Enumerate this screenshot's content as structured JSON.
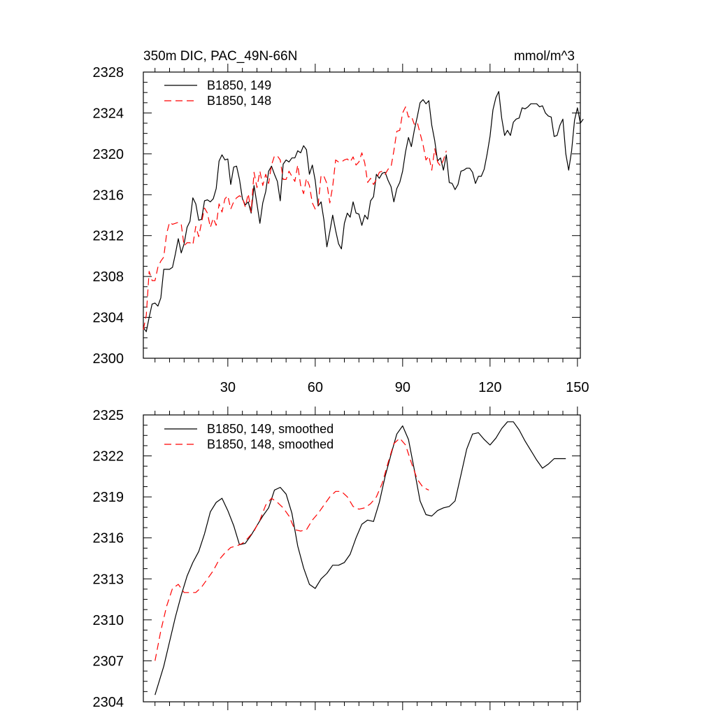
{
  "chart_data": [
    {
      "type": "line",
      "title": "350m DIC, PAC_49N-66N",
      "units": "mmol/m^3",
      "xlabel": "",
      "ylabel": "",
      "xlim": [
        1,
        151
      ],
      "ylim": [
        2300,
        2328
      ],
      "x_ticks": [
        30,
        60,
        90,
        120,
        150
      ],
      "y_ticks": [
        2300,
        2304,
        2308,
        2312,
        2316,
        2320,
        2324,
        2328
      ],
      "legend_position": "top-left",
      "grid": false,
      "series": [
        {
          "name": "B1850, 149",
          "color": "#000000",
          "dash": "solid",
          "x_start": 1,
          "values": [
            2303.0,
            2302.6,
            2304.0,
            2305.3,
            2305.4,
            2305.1,
            2305.9,
            2308.7,
            2308.7,
            2308.7,
            2308.9,
            2310.2,
            2311.7,
            2310.3,
            2311.2,
            2312.8,
            2313.4,
            2315.7,
            2315.1,
            2313.5,
            2313.6,
            2315.4,
            2315.5,
            2315.3,
            2315.6,
            2316.6,
            2319.3,
            2319.9,
            2319.4,
            2319.5,
            2317.0,
            2318.7,
            2318.8,
            2317.5,
            2315.6,
            2315.0,
            2315.3,
            2314.2,
            2316.9,
            2315.1,
            2313.2,
            2315.2,
            2316.3,
            2318.3,
            2318.8,
            2318.0,
            2317.3,
            2315.4,
            2319.0,
            2319.4,
            2319.2,
            2319.6,
            2319.6,
            2320.3,
            2320.1,
            2320.8,
            2320.4,
            2318.0,
            2318.9,
            2317.4,
            2314.9,
            2315.3,
            2313.5,
            2310.9,
            2312.4,
            2314.0,
            2312.5,
            2311.2,
            2310.7,
            2313.2,
            2314.2,
            2313.8,
            2315.3,
            2314.2,
            2314.1,
            2313.0,
            2314.0,
            2313.6,
            2315.4,
            2315.8,
            2318.0,
            2317.6,
            2318.1,
            2318.2,
            2317.4,
            2316.8,
            2315.3,
            2316.6,
            2317.2,
            2318.3,
            2320.2,
            2321.6,
            2320.7,
            2322.3,
            2323.6,
            2325.0,
            2325.3,
            2324.9,
            2325.2,
            2322.8,
            2321.3,
            2319.3,
            2319.6,
            2318.4,
            2319.9,
            2317.2,
            2317.1,
            2316.5,
            2317.0,
            2318.3,
            2318.4,
            2318.6,
            2318.6,
            2318.2,
            2317.1,
            2317.8,
            2317.8,
            2318.5,
            2320.0,
            2321.7,
            2324.3,
            2325.5,
            2326.1,
            2323.5,
            2321.8,
            2322.3,
            2321.8,
            2323.1,
            2323.4,
            2323.5,
            2324.5,
            2324.4,
            2324.6,
            2324.9,
            2324.9,
            2324.9,
            2324.6,
            2324.7,
            2324.0,
            2323.7,
            2323.6,
            2321.7,
            2321.8,
            2322.8,
            2323.4,
            2320.0,
            2318.4,
            2320.3,
            2323.3,
            2324.5,
            2323.0,
            2323.4
          ]
        },
        {
          "name": "B1850, 148",
          "color": "#ff0000",
          "dash": "dashed",
          "x_start": 1,
          "values": [
            2302.8,
            2304.2,
            2308.5,
            2307.6,
            2307.6,
            2308.9,
            2309.5,
            2309.9,
            2312.2,
            2313.3,
            2313.1,
            2313.2,
            2313.3,
            2313.1,
            2311.0,
            2311.3,
            2311.3,
            2311.1,
            2312.9,
            2311.9,
            2313.3,
            2314.7,
            2314.2,
            2312.8,
            2313.7,
            2313.0,
            2315.1,
            2314.3,
            2315.6,
            2315.9,
            2314.6,
            2315.3,
            2315.7,
            2315.9,
            2315.7,
            2314.8,
            2316.1,
            2314.3,
            2318.2,
            2316.7,
            2318.3,
            2316.9,
            2318.0,
            2317.1,
            2318.9,
            2319.8,
            2319.8,
            2319.4,
            2317.5,
            2317.5,
            2318.3,
            2317.8,
            2317.3,
            2318.9,
            2316.9,
            2316.1,
            2317.6,
            2316.9,
            2315.2,
            2314.6,
            2315.0,
            2317.9,
            2317.8,
            2317.1,
            2315.2,
            2316.8,
            2319.4,
            2319.2,
            2319.2,
            2319.4,
            2319.5,
            2319.2,
            2319.7,
            2318.9,
            2319.2,
            2320.1,
            2319.1,
            2317.2,
            2317.6,
            2317.0,
            2317.5,
            2318.2,
            2318.3,
            2318.0,
            2318.5,
            2318.7,
            2320.3,
            2322.2,
            2322.3,
            2324.0,
            2324.6,
            2323.6,
            2323.7,
            2322.9,
            2323.1,
            2322.0,
            2320.9,
            2319.4,
            2319.8,
            2318.4,
            2320.5,
            2319.2,
            2318.8,
            2319.4,
            2320.3
          ]
        }
      ]
    },
    {
      "type": "line",
      "title": "",
      "xlabel": "",
      "ylabel": "",
      "xlim": [
        1,
        151
      ],
      "ylim": [
        2304,
        2325
      ],
      "x_ticks": [
        30,
        60,
        90,
        120,
        150
      ],
      "y_ticks": [
        2304,
        2307,
        2310,
        2313,
        2316,
        2319,
        2322,
        2325
      ],
      "legend_position": "top-left",
      "grid": false,
      "series": [
        {
          "name": "B1850, 149, smoothed",
          "color": "#000000",
          "dash": "solid",
          "x": [
            5,
            8,
            10,
            12,
            14,
            16,
            18,
            20,
            22,
            24,
            26,
            28,
            30,
            32,
            34,
            36,
            38,
            40,
            42,
            44,
            46,
            48,
            50,
            52,
            54,
            56,
            58,
            60,
            62,
            64,
            66,
            68,
            70,
            72,
            74,
            76,
            78,
            80,
            82,
            84,
            86,
            88,
            90,
            92,
            94,
            96,
            98,
            100,
            102,
            104,
            106,
            108,
            110,
            112,
            114,
            116,
            118,
            120,
            122,
            124,
            126,
            128,
            130,
            132,
            134,
            136,
            138,
            140,
            142,
            144,
            146
          ],
          "values": [
            2304.5,
            2306.6,
            2308.4,
            2310.2,
            2311.8,
            2313.2,
            2314.2,
            2315.0,
            2316.3,
            2317.9,
            2318.6,
            2318.9,
            2318.0,
            2316.9,
            2315.5,
            2315.6,
            2316.2,
            2316.9,
            2317.6,
            2318.2,
            2319.5,
            2319.7,
            2319.2,
            2317.8,
            2315.4,
            2313.8,
            2312.6,
            2312.3,
            2313.0,
            2313.4,
            2314.0,
            2314.0,
            2314.2,
            2314.8,
            2316.0,
            2317.0,
            2317.3,
            2317.2,
            2318.6,
            2320.5,
            2322.1,
            2323.6,
            2324.2,
            2323.2,
            2321.0,
            2318.7,
            2317.7,
            2317.6,
            2318.0,
            2318.2,
            2318.3,
            2318.7,
            2320.6,
            2322.5,
            2323.6,
            2323.7,
            2323.2,
            2322.8,
            2323.3,
            2324.0,
            2324.5,
            2324.5,
            2323.9,
            2323.1,
            2322.4,
            2321.7,
            2321.1,
            2321.4,
            2321.8,
            2321.8,
            2321.8
          ]
        },
        {
          "name": "B1850, 148, smoothed",
          "color": "#ff0000",
          "dash": "dashed",
          "x": [
            5,
            7,
            9,
            11,
            13,
            15,
            17,
            19,
            21,
            23,
            25,
            27,
            29,
            31,
            33,
            35,
            37,
            39,
            41,
            43,
            45,
            47,
            49,
            51,
            53,
            55,
            57,
            59,
            61,
            63,
            65,
            67,
            69,
            71,
            73,
            75,
            77,
            79,
            81,
            83,
            85,
            87,
            89,
            91,
            93,
            95,
            97,
            99
          ],
          "values": [
            2307.0,
            2309.2,
            2311.0,
            2312.3,
            2312.6,
            2312.0,
            2312.0,
            2312.0,
            2312.4,
            2313.0,
            2313.6,
            2314.4,
            2314.9,
            2315.3,
            2315.4,
            2315.6,
            2316.0,
            2316.5,
            2317.3,
            2318.4,
            2318.9,
            2318.6,
            2318.2,
            2317.6,
            2316.6,
            2316.5,
            2316.6,
            2317.3,
            2317.8,
            2318.4,
            2319.0,
            2319.4,
            2319.4,
            2319.0,
            2318.3,
            2318.1,
            2318.2,
            2318.5,
            2319.0,
            2320.0,
            2321.5,
            2322.9,
            2323.3,
            2322.8,
            2321.5,
            2320.3,
            2319.7,
            2319.5
          ]
        }
      ]
    }
  ]
}
